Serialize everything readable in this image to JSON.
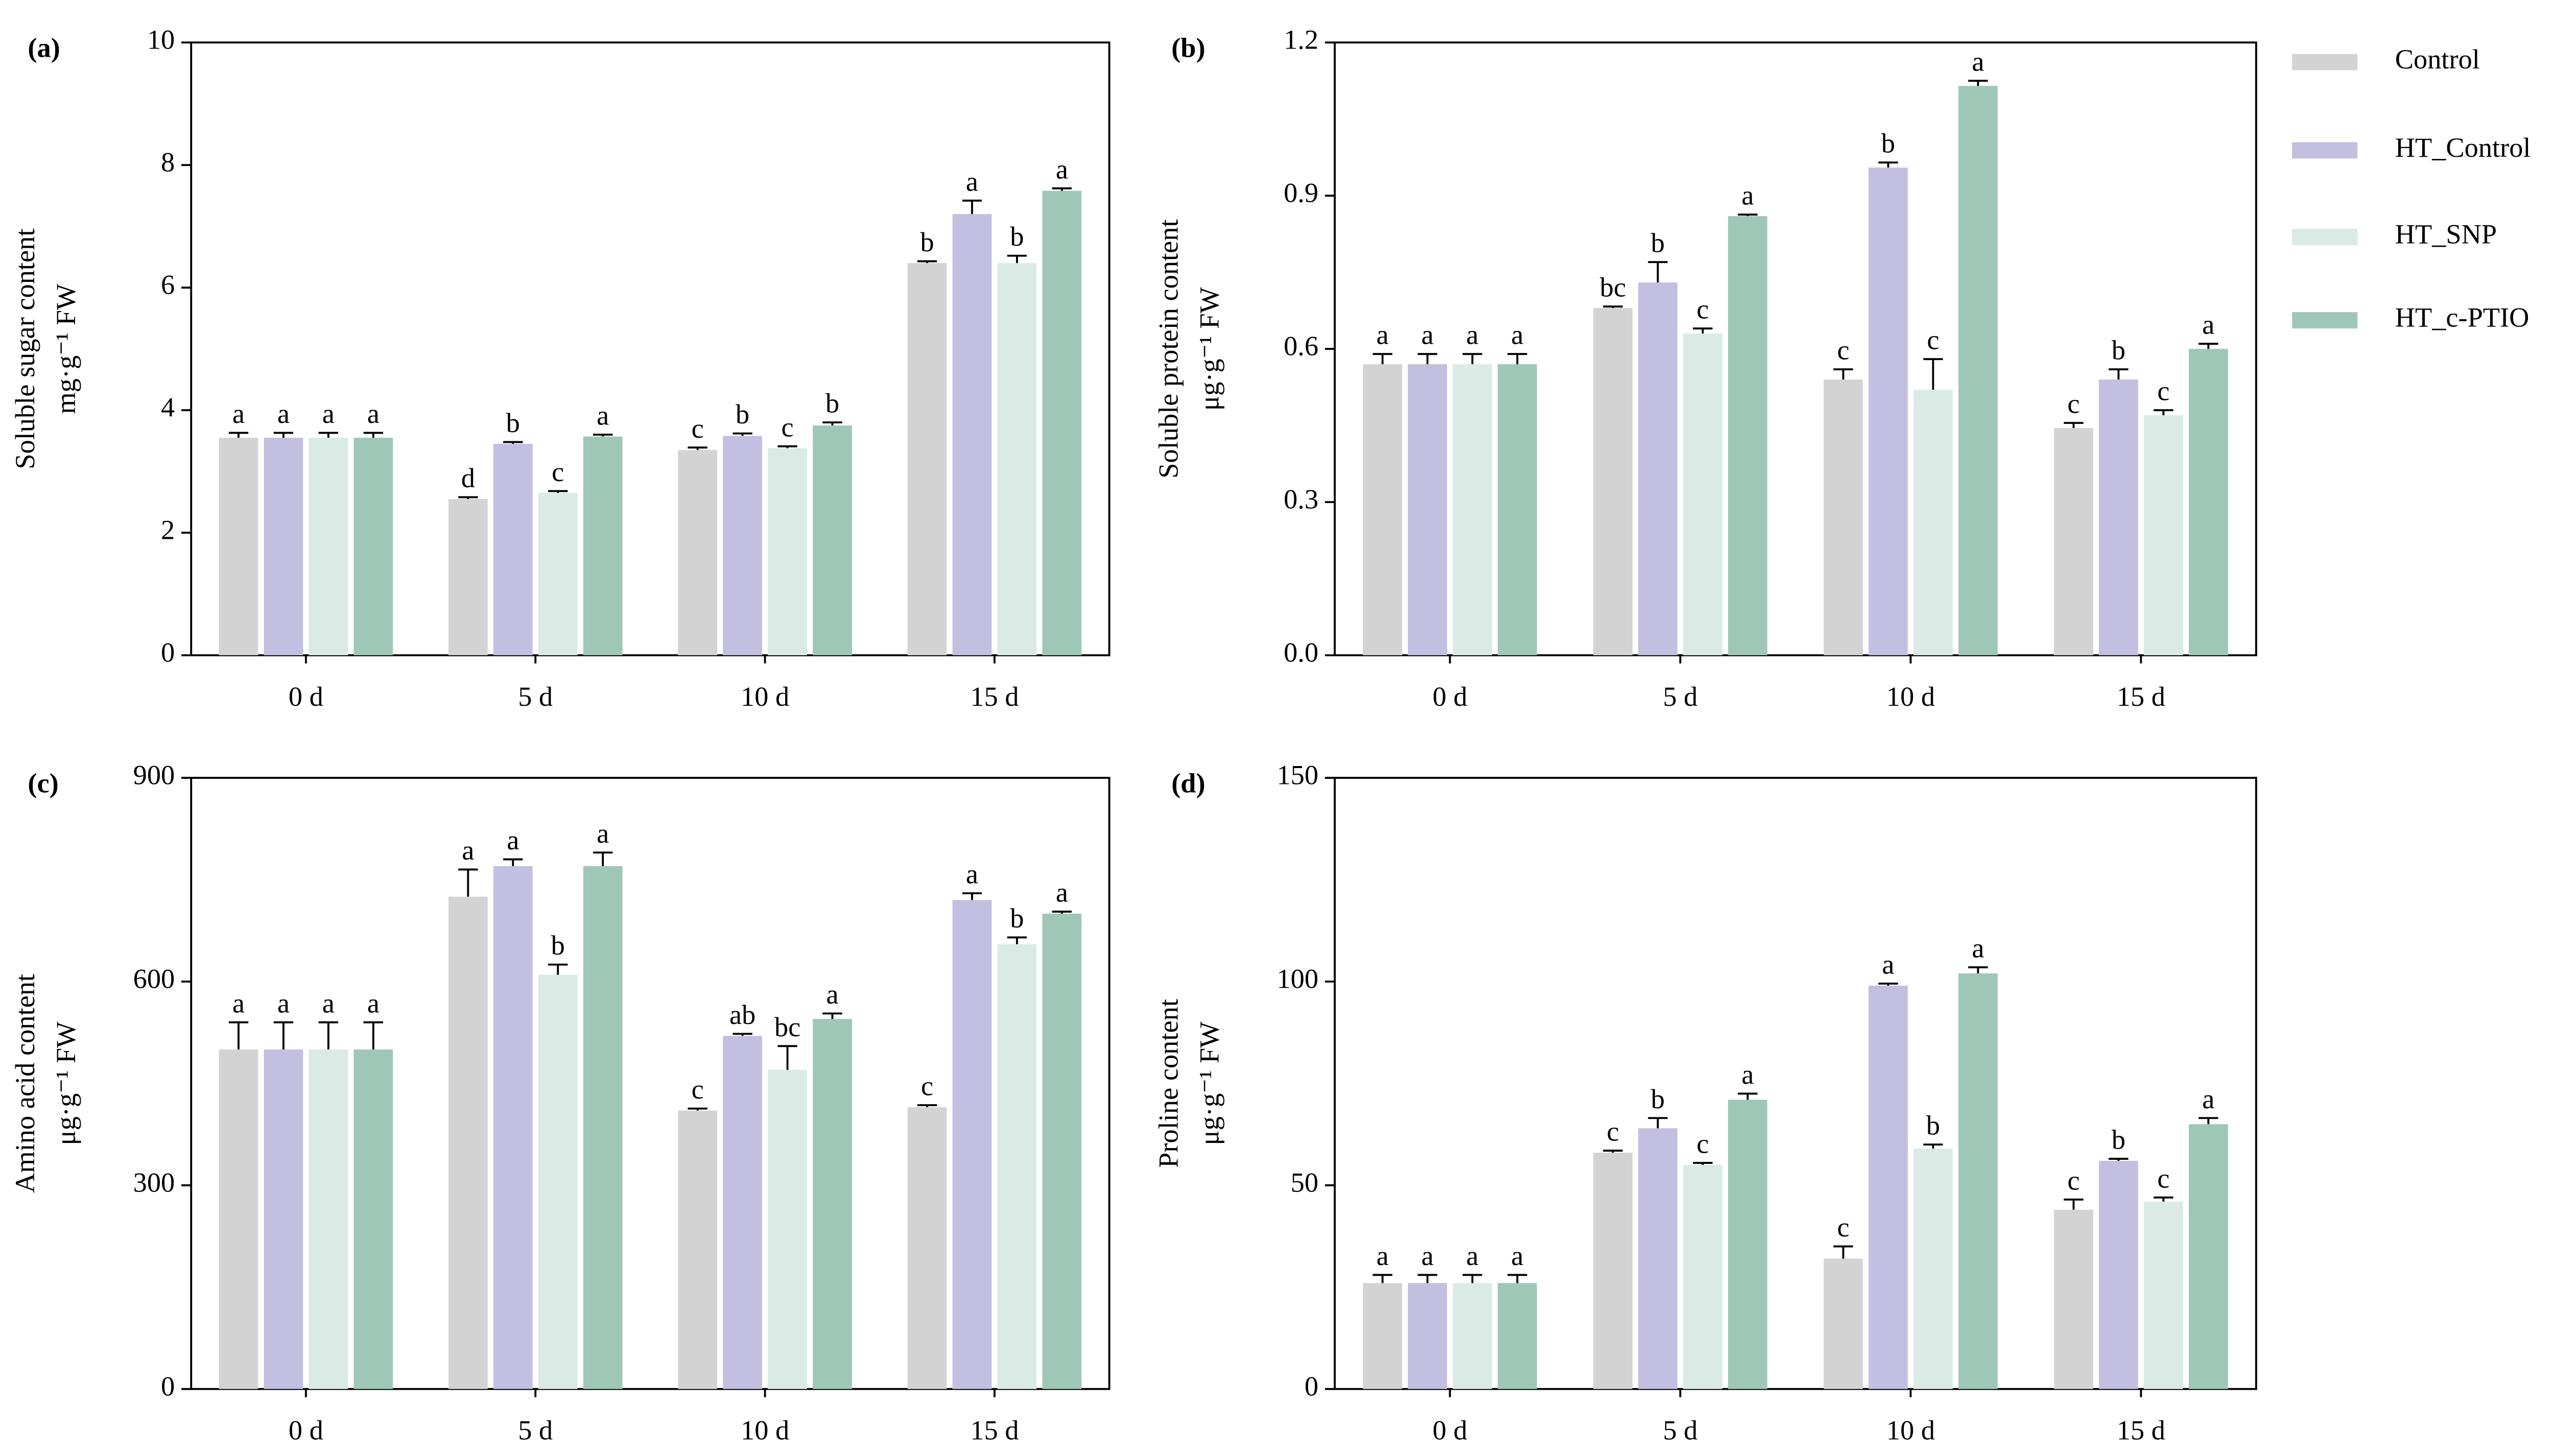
{
  "legend": [
    {
      "name": "Control",
      "color": "#d3d3d3"
    },
    {
      "name": "HT_Control",
      "color": "#c3bfe0"
    },
    {
      "name": "HT_SNP",
      "color": "#d9ebe4"
    },
    {
      "name": "HT_c-PTIO",
      "color": "#9fc7b8"
    }
  ],
  "chart_data": [
    {
      "type": "bar",
      "panel": "(a)",
      "ylabel": [
        "Soluble sugar content",
        "mg·g⁻¹ FW"
      ],
      "categories": [
        "0 d",
        "5 d",
        "10 d",
        "15 d"
      ],
      "ylim": [
        0,
        10
      ],
      "yticks": [
        0,
        2,
        4,
        6,
        8,
        10
      ],
      "series": [
        {
          "values": [
            3.55,
            2.55,
            3.35,
            6.4
          ],
          "errors": [
            0.08,
            0.03,
            0.04,
            0.03
          ],
          "letters": [
            "a",
            "d",
            "c",
            "b"
          ]
        },
        {
          "values": [
            3.55,
            3.45,
            3.58,
            7.2
          ],
          "errors": [
            0.08,
            0.03,
            0.04,
            0.22
          ],
          "letters": [
            "a",
            "b",
            "b",
            "a"
          ]
        },
        {
          "values": [
            3.55,
            2.65,
            3.38,
            6.4
          ],
          "errors": [
            0.08,
            0.03,
            0.03,
            0.12
          ],
          "letters": [
            "a",
            "c",
            "c",
            "b"
          ]
        },
        {
          "values": [
            3.55,
            3.57,
            3.75,
            7.58
          ],
          "errors": [
            0.08,
            0.03,
            0.05,
            0.04
          ],
          "letters": [
            "a",
            "a",
            "b",
            "a"
          ]
        }
      ]
    },
    {
      "type": "bar",
      "panel": "(b)",
      "ylabel": [
        "Soluble protein content",
        "μg·g⁻¹ FW"
      ],
      "categories": [
        "0 d",
        "5 d",
        "10 d",
        "15 d"
      ],
      "ylim": [
        0,
        1.2
      ],
      "yticks": [
        {
          "value": 0,
          "label": "0.0"
        },
        0.3,
        0.6,
        0.9,
        1.2
      ],
      "series": [
        {
          "values": [
            0.57,
            0.68,
            0.54,
            0.445
          ],
          "errors": [
            0.02,
            0.003,
            0.02,
            0.01
          ],
          "letters": [
            "a",
            "bc",
            "c",
            "c"
          ]
        },
        {
          "values": [
            0.57,
            0.73,
            0.955,
            0.54
          ],
          "errors": [
            0.02,
            0.04,
            0.01,
            0.02
          ],
          "letters": [
            "a",
            "b",
            "b",
            "b"
          ]
        },
        {
          "values": [
            0.57,
            0.63,
            0.52,
            0.47
          ],
          "errors": [
            0.02,
            0.01,
            0.06,
            0.01
          ],
          "letters": [
            "a",
            "c",
            "c",
            "c"
          ]
        },
        {
          "values": [
            0.57,
            0.86,
            1.115,
            0.6
          ],
          "errors": [
            0.02,
            0.003,
            0.01,
            0.01
          ],
          "letters": [
            "a",
            "a",
            "a",
            "a"
          ]
        }
      ]
    },
    {
      "type": "bar",
      "panel": "(c)",
      "ylabel": [
        "Amino acid content",
        "μg·g⁻¹ FW"
      ],
      "categories": [
        "0 d",
        "5 d",
        "10 d",
        "15 d"
      ],
      "ylim": [
        0,
        900
      ],
      "yticks": [
        0,
        300,
        600,
        900
      ],
      "series": [
        {
          "values": [
            500,
            725,
            410,
            415
          ],
          "errors": [
            40,
            40,
            3,
            3
          ],
          "letters": [
            "a",
            "a",
            "c",
            "c"
          ]
        },
        {
          "values": [
            500,
            770,
            520,
            720
          ],
          "errors": [
            40,
            10,
            3,
            10
          ],
          "letters": [
            "a",
            "a",
            "ab",
            "a"
          ]
        },
        {
          "values": [
            500,
            610,
            470,
            655
          ],
          "errors": [
            40,
            15,
            35,
            10
          ],
          "letters": [
            "a",
            "b",
            "bc",
            "b"
          ]
        },
        {
          "values": [
            500,
            770,
            545,
            700
          ],
          "errors": [
            40,
            20,
            8,
            3
          ],
          "letters": [
            "a",
            "a",
            "a",
            "a"
          ]
        }
      ]
    },
    {
      "type": "bar",
      "panel": "(d)",
      "ylabel": [
        "Proline content",
        "μg·g⁻¹ FW"
      ],
      "categories": [
        "0 d",
        "5 d",
        "10 d",
        "15 d"
      ],
      "ylim": [
        0,
        150
      ],
      "yticks": [
        0,
        50,
        100,
        150
      ],
      "series": [
        {
          "values": [
            26,
            58,
            32,
            44
          ],
          "errors": [
            2,
            0.5,
            3,
            2.5
          ],
          "letters": [
            "a",
            "c",
            "c",
            "c"
          ]
        },
        {
          "values": [
            26,
            64,
            99,
            56
          ],
          "errors": [
            2,
            2.5,
            0.5,
            0.5
          ],
          "letters": [
            "a",
            "b",
            "a",
            "b"
          ]
        },
        {
          "values": [
            26,
            55,
            59,
            46
          ],
          "errors": [
            2,
            0.5,
            1,
            1
          ],
          "letters": [
            "a",
            "c",
            "b",
            "c"
          ]
        },
        {
          "values": [
            26,
            71,
            102,
            65
          ],
          "errors": [
            2,
            1.5,
            1.5,
            1.5
          ],
          "letters": [
            "a",
            "a",
            "a",
            "a"
          ]
        }
      ]
    }
  ]
}
